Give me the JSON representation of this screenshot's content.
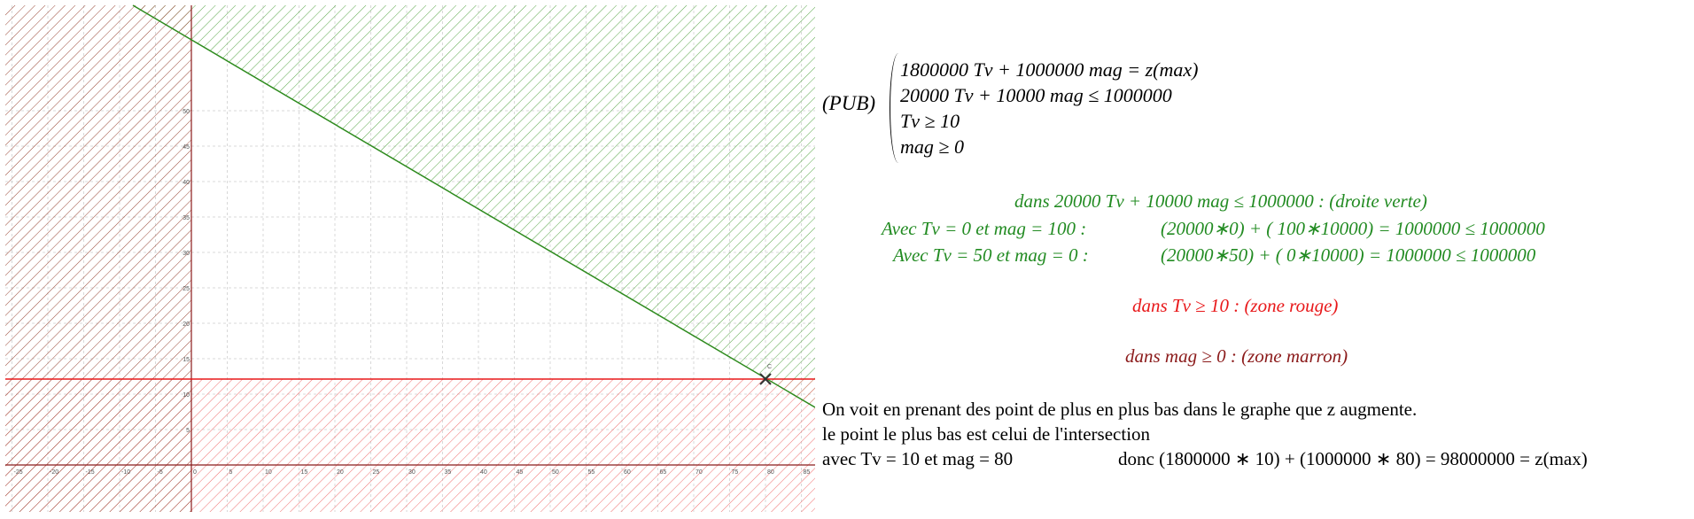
{
  "system": {
    "name": "(PUB)",
    "lines": [
      "1800000 Tv + 1000000 mag = z(max)",
      "20000 Tv + 10000 mag ≤ 1000000",
      "Tv ≥ 10",
      "mag ≥ 0"
    ]
  },
  "green_block": {
    "title": "dans  20000 Tv + 10000 mag ≤ 1000000 : (droite verte)",
    "row1_left": "Avec Tv = 0  et  mag = 100 :",
    "row1_right": "(20000∗0) + ( 100∗10000) = 1000000  ≤ 1000000",
    "row2_left": "Avec Tv = 50  et  mag = 0 :",
    "row2_right": "(20000∗50) + ( 0∗10000) = 1000000  ≤ 1000000"
  },
  "red_block": {
    "text": "dans  Tv ≥ 10 : (zone rouge)"
  },
  "brown_block": {
    "text": "dans  mag ≥ 0 : (zone marron)"
  },
  "conclusion": {
    "line1": "On voit en prenant des point de plus en plus bas dans le graphe que z augmente.",
    "line2": "le point le plus bas est celui de l'intersection",
    "line3_left": "avec  Tv = 10  et  mag = 80",
    "line3_right": "donc  (1800000 ∗ 10) + (1000000 ∗ 80) = 98000000 = z(max)"
  },
  "graph": {
    "x_ticks": [
      "-25",
      "-20",
      "-15",
      "-10",
      "-5",
      "0",
      "5",
      "10",
      "15",
      "20",
      "25",
      "30",
      "35",
      "40",
      "45",
      "50",
      "55",
      "60",
      "65",
      "70",
      "75",
      "80",
      "85"
    ],
    "y_ticks": [
      "0",
      "5",
      "10",
      "15",
      "20",
      "25",
      "30",
      "35",
      "40",
      "45",
      "50"
    ],
    "colors": {
      "green": "#2e8b1e",
      "red": "#e8181a",
      "brown": "#8b1a1a",
      "grid": "#d8d8d8"
    },
    "intersection_label": "C"
  }
}
